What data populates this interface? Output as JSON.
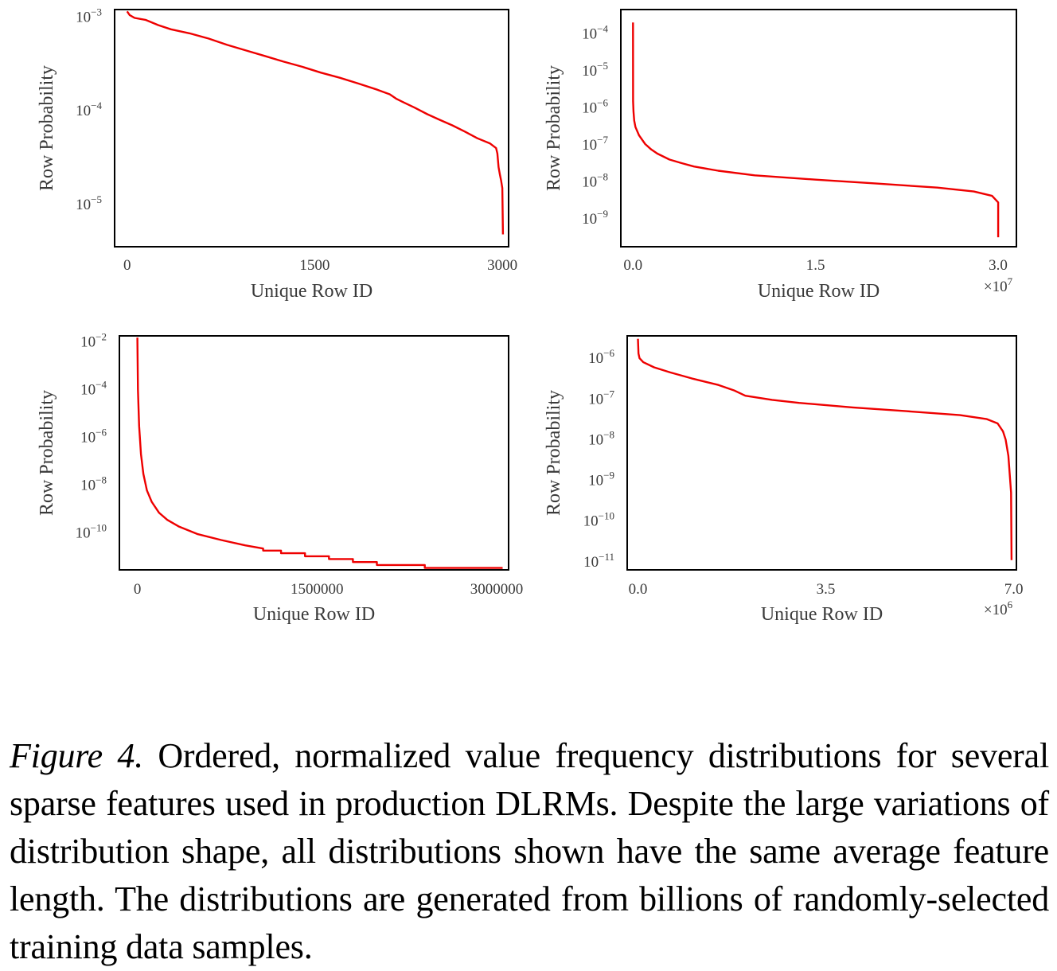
{
  "caption": {
    "label": "Figure 4.",
    "text": "Ordered, normalized value frequency distributions for several sparse features used in production DLRMs. Despite the large variations of distribution shape, all distributions shown have the same average feature length. The distributions are generated from billions of randomly-selected training data samples."
  },
  "colors": {
    "line": "#ee0000",
    "frame": "#000000",
    "text": "#3a3a3a"
  },
  "chart_data": [
    {
      "type": "line",
      "panel": "top-left",
      "xlabel": "Unique Row ID",
      "ylabel": "Row Probability",
      "yscale": "log",
      "xlim": [
        -100,
        3050
      ],
      "ylim_exp": [
        -5.45,
        -2.92
      ],
      "x_ticks": [
        {
          "value": 0,
          "label": "0"
        },
        {
          "value": 1500,
          "label": "1500"
        },
        {
          "value": 3000,
          "label": "3000"
        }
      ],
      "y_ticks": [
        -3,
        -4,
        -5
      ],
      "x_multiplier": "",
      "series": [
        {
          "name": "distribution",
          "x": [
            0,
            20,
            60,
            150,
            250,
            350,
            500,
            650,
            800,
            950,
            1100,
            1250,
            1400,
            1550,
            1700,
            1850,
            2000,
            2100,
            2150,
            2200,
            2300,
            2400,
            2500,
            2600,
            2700,
            2800,
            2900,
            2950,
            2960,
            2970,
            2980,
            2990,
            3000,
            3005
          ],
          "y": [
            0.00115,
            0.00105,
            0.00098,
            0.00093,
            0.00082,
            0.00074,
            0.00067,
            0.00059,
            0.000505,
            0.00044,
            0.000385,
            0.000335,
            0.000295,
            0.000255,
            0.000225,
            0.000195,
            0.000168,
            0.00015,
            0.000135,
            0.000125,
            0.000108,
            9.2e-05,
            8e-05,
            7e-05,
            6e-05,
            5.1e-05,
            4.5e-05,
            4e-05,
            3.5e-05,
            2.5e-05,
            2.1e-05,
            1.8e-05,
            1.5e-05,
            4.8e-06
          ]
        }
      ]
    },
    {
      "type": "line",
      "panel": "top-right",
      "xlabel": "Unique Row ID",
      "ylabel": "Row Probability",
      "yscale": "log",
      "xlim": [
        -0.1,
        3.15
      ],
      "ylim_exp": [
        -9.75,
        -3.35
      ],
      "x_ticks": [
        {
          "value": 0,
          "label": "0.0"
        },
        {
          "value": 1.5,
          "label": "1.5"
        },
        {
          "value": 3.0,
          "label": "3.0"
        }
      ],
      "y_ticks": [
        -4,
        -5,
        -6,
        -7,
        -8,
        -9
      ],
      "x_multiplier": "7",
      "series": [
        {
          "name": "distribution",
          "x": [
            0,
            0.001,
            0.004,
            0.01,
            0.02,
            0.05,
            0.1,
            0.15,
            0.2,
            0.3,
            0.4,
            0.5,
            0.7,
            1.0,
            1.5,
            2.0,
            2.5,
            2.8,
            2.95,
            3.0,
            3.0
          ],
          "y": [
            0.0002,
            1.5e-06,
            8e-07,
            4.5e-07,
            3e-07,
            1.8e-07,
            1.05e-07,
            7.5e-08,
            5.8e-08,
            4e-08,
            3.2e-08,
            2.6e-08,
            2e-08,
            1.5e-08,
            1.15e-08,
            9e-09,
            7e-09,
            5.5e-09,
            4.2e-09,
            2.8e-09,
            3.2e-10
          ]
        }
      ]
    },
    {
      "type": "line",
      "panel": "bottom-left",
      "xlabel": "Unique Row ID",
      "ylabel": "Row Probability",
      "yscale": "log",
      "xlim": [
        -150000,
        3100000
      ],
      "ylim_exp": [
        -11.55,
        -1.75
      ],
      "x_ticks": [
        {
          "value": 0,
          "label": "0"
        },
        {
          "value": 1500000,
          "label": "1500000"
        },
        {
          "value": 3000000,
          "label": "3000000"
        }
      ],
      "y_ticks": [
        -2,
        -4,
        -6,
        -8,
        -10
      ],
      "x_multiplier": "",
      "series": [
        {
          "name": "distribution",
          "x": [
            0,
            5000,
            15000,
            30000,
            50000,
            80000,
            120000,
            180000,
            250000,
            350000,
            500000,
            700000,
            900000,
            1050000,
            1050000,
            1200000,
            1200000,
            1400000,
            1400000,
            1600000,
            1600000,
            1800000,
            1800000,
            2000000,
            2000000,
            2400000,
            2400000,
            3050000
          ],
          "y": [
            0.015,
            0.0001,
            3e-06,
            2e-07,
            3e-08,
            6e-09,
            2e-09,
            7e-10,
            3.5e-10,
            1.8e-10,
            9e-11,
            5e-11,
            3e-11,
            2.2e-11,
            1.8e-11,
            1.8e-11,
            1.4e-11,
            1.4e-11,
            1.05e-11,
            1.05e-11,
            8e-12,
            8e-12,
            6e-12,
            6e-12,
            4.5e-12,
            4.5e-12,
            3.4e-12,
            3.4e-12
          ]
        }
      ]
    },
    {
      "type": "line",
      "panel": "bottom-right",
      "xlabel": "Unique Row ID",
      "ylabel": "Row Probability",
      "yscale": "log",
      "xlim": [
        -0.2,
        7.05
      ],
      "ylim_exp": [
        -11.2,
        -5.45
      ],
      "x_ticks": [
        {
          "value": 0,
          "label": "0.0"
        },
        {
          "value": 3.5,
          "label": "3.5"
        },
        {
          "value": 7.0,
          "label": "7.0"
        }
      ],
      "y_ticks": [
        -6,
        -7,
        -8,
        -9,
        -10,
        -11
      ],
      "x_multiplier": "6",
      "series": [
        {
          "name": "distribution",
          "x": [
            0,
            0.01,
            0.03,
            0.1,
            0.3,
            0.6,
            1.0,
            1.5,
            1.8,
            2.0,
            2.5,
            3.0,
            4.0,
            5.0,
            6.0,
            6.5,
            6.7,
            6.8,
            6.85,
            6.9,
            6.95,
            6.96
          ],
          "y": [
            3e-06,
            1.3e-06,
            1e-06,
            8e-07,
            6e-07,
            4.5e-07,
            3.2e-07,
            2.2e-07,
            1.6e-07,
            1.2e-07,
            9.5e-08,
            8e-08,
            6.2e-08,
            5e-08,
            4e-08,
            3.2e-08,
            2.5e-08,
            1.6e-08,
            1e-08,
            4e-09,
            5e-10,
            1.1e-11
          ]
        }
      ]
    }
  ]
}
